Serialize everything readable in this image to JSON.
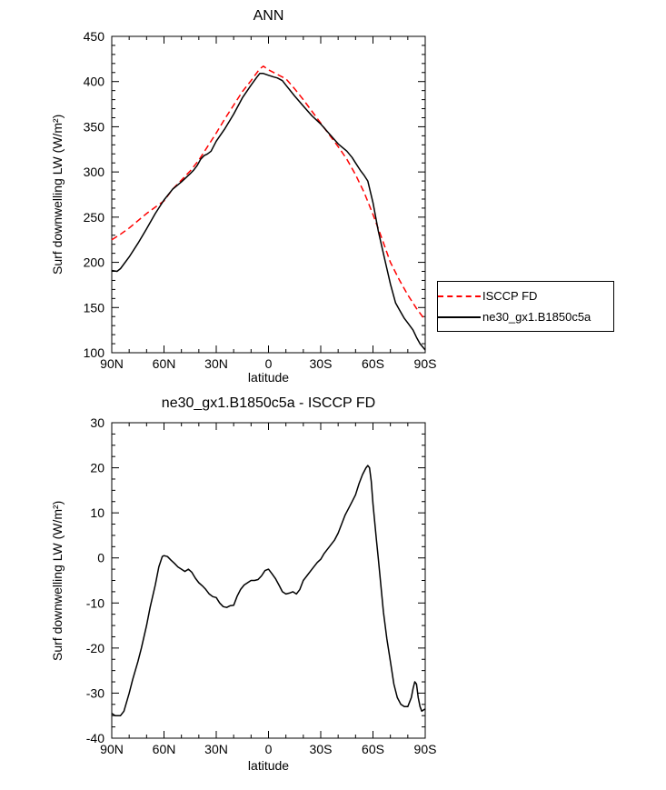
{
  "page": {
    "background": "#ffffff"
  },
  "chart_data": [
    {
      "type": "line",
      "title": "ANN",
      "xlabel": "latitude",
      "ylabel": "Surf downwelling LW (W/m²)",
      "xlim": [
        90,
        -90
      ],
      "ylim": [
        100,
        450
      ],
      "grid": false,
      "legend_position": "outside-right",
      "axis_color": "#000000",
      "xticks": {
        "major": [
          {
            "v": 90,
            "label": "90N"
          },
          {
            "v": 60,
            "label": "60N"
          },
          {
            "v": 30,
            "label": "30N"
          },
          {
            "v": 0,
            "label": "0"
          },
          {
            "v": -30,
            "label": "30S"
          },
          {
            "v": -60,
            "label": "60S"
          },
          {
            "v": -90,
            "label": "90S"
          }
        ],
        "minor_step": 10
      },
      "yticks": {
        "major": [
          {
            "v": 100,
            "label": "100"
          },
          {
            "v": 150,
            "label": "150"
          },
          {
            "v": 200,
            "label": "200"
          },
          {
            "v": 250,
            "label": "250"
          },
          {
            "v": 300,
            "label": "300"
          },
          {
            "v": 350,
            "label": "350"
          },
          {
            "v": 400,
            "label": "400"
          },
          {
            "v": 450,
            "label": "450"
          }
        ],
        "minor_step": 10
      },
      "series": [
        {
          "id": "isccp-fd",
          "name": "ISCCP FD",
          "color": "#ff0000",
          "style": "dashed",
          "dash": "7,4",
          "points": [
            [
              90,
              225
            ],
            [
              85,
              231
            ],
            [
              80,
              238
            ],
            [
              75,
              246
            ],
            [
              70,
              254
            ],
            [
              65,
              261
            ],
            [
              60,
              268
            ],
            [
              55,
              281
            ],
            [
              50,
              291
            ],
            [
              45,
              301
            ],
            [
              40,
              313
            ],
            [
              35,
              328
            ],
            [
              30,
              343
            ],
            [
              25,
              359
            ],
            [
              20,
              374
            ],
            [
              15,
              389
            ],
            [
              10,
              401
            ],
            [
              7,
              409
            ],
            [
              5,
              414
            ],
            [
              3,
              417
            ],
            [
              0,
              413
            ],
            [
              -3,
              410
            ],
            [
              -5,
              408
            ],
            [
              -10,
              403
            ],
            [
              -15,
              392
            ],
            [
              -20,
              380
            ],
            [
              -25,
              367
            ],
            [
              -30,
              354
            ],
            [
              -35,
              341
            ],
            [
              -40,
              328
            ],
            [
              -45,
              314
            ],
            [
              -50,
              297
            ],
            [
              -55,
              277
            ],
            [
              -60,
              253
            ],
            [
              -65,
              227
            ],
            [
              -70,
              200
            ],
            [
              -75,
              181
            ],
            [
              -80,
              164
            ],
            [
              -85,
              149
            ],
            [
              -90,
              136
            ]
          ]
        },
        {
          "id": "ne30",
          "name": "ne30_gx1.B1850c5a",
          "color": "#000000",
          "style": "solid",
          "dash": "",
          "points": [
            [
              90,
              191
            ],
            [
              87,
              190
            ],
            [
              85,
              193
            ],
            [
              80,
              206
            ],
            [
              75,
              221
            ],
            [
              70,
              237
            ],
            [
              65,
              254
            ],
            [
              60,
              269
            ],
            [
              55,
              281
            ],
            [
              50,
              289
            ],
            [
              45,
              298
            ],
            [
              43,
              302
            ],
            [
              41,
              307
            ],
            [
              39,
              314
            ],
            [
              37,
              318
            ],
            [
              35,
              320
            ],
            [
              33,
              323
            ],
            [
              30,
              334
            ],
            [
              25,
              348
            ],
            [
              20,
              364
            ],
            [
              15,
              382
            ],
            [
              10,
              396
            ],
            [
              7,
              404
            ],
            [
              5,
              409
            ],
            [
              3,
              409
            ],
            [
              0,
              407
            ],
            [
              -3,
              405
            ],
            [
              -5,
              404
            ],
            [
              -8,
              401
            ],
            [
              -10,
              396
            ],
            [
              -15,
              384
            ],
            [
              -20,
              373
            ],
            [
              -25,
              362
            ],
            [
              -30,
              353
            ],
            [
              -35,
              342
            ],
            [
              -40,
              331
            ],
            [
              -45,
              323
            ],
            [
              -48,
              316
            ],
            [
              -50,
              310
            ],
            [
              -53,
              301
            ],
            [
              -55,
              296
            ],
            [
              -57,
              290
            ],
            [
              -60,
              266
            ],
            [
              -63,
              235
            ],
            [
              -65,
              218
            ],
            [
              -68,
              193
            ],
            [
              -70,
              176
            ],
            [
              -73,
              155
            ],
            [
              -75,
              148
            ],
            [
              -78,
              138
            ],
            [
              -80,
              133
            ],
            [
              -83,
              125
            ],
            [
              -85,
              117
            ],
            [
              -87,
              110
            ],
            [
              -90,
              103
            ]
          ]
        }
      ]
    },
    {
      "type": "line",
      "title": "ne30_gx1.B1850c5a - ISCCP FD",
      "xlabel": "latitude",
      "ylabel": "Surf downwelling LW (W/m²)",
      "xlim": [
        90,
        -90
      ],
      "ylim": [
        -40,
        30
      ],
      "grid": false,
      "legend_position": "none",
      "axis_color": "#000000",
      "xticks": {
        "major": [
          {
            "v": 90,
            "label": "90N"
          },
          {
            "v": 60,
            "label": "60N"
          },
          {
            "v": 30,
            "label": "30N"
          },
          {
            "v": 0,
            "label": "0"
          },
          {
            "v": -30,
            "label": "30S"
          },
          {
            "v": -60,
            "label": "60S"
          },
          {
            "v": -90,
            "label": "90S"
          }
        ],
        "minor_step": 10
      },
      "yticks": {
        "major": [
          {
            "v": -40,
            "label": "-40"
          },
          {
            "v": -30,
            "label": "-30"
          },
          {
            "v": -20,
            "label": "-20"
          },
          {
            "v": -10,
            "label": "-10"
          },
          {
            "v": 0,
            "label": "0"
          },
          {
            "v": 10,
            "label": "10"
          },
          {
            "v": 20,
            "label": "20"
          },
          {
            "v": 30,
            "label": "30"
          }
        ],
        "minor_step": 2.5
      },
      "series": [
        {
          "id": "diff",
          "name": "ne30_gx1.B1850c5a - ISCCP FD",
          "color": "#000000",
          "style": "solid",
          "dash": "",
          "points": [
            [
              90,
              -34.5
            ],
            [
              88,
              -35
            ],
            [
              85,
              -35
            ],
            [
              83,
              -34
            ],
            [
              80,
              -30
            ],
            [
              78,
              -27
            ],
            [
              75,
              -23
            ],
            [
              73,
              -20
            ],
            [
              70,
              -15
            ],
            [
              68,
              -11
            ],
            [
              65,
              -6
            ],
            [
              63,
              -2
            ],
            [
              61,
              0.3
            ],
            [
              60,
              0.5
            ],
            [
              58,
              0.3
            ],
            [
              56,
              -0.5
            ],
            [
              54,
              -1.2
            ],
            [
              52,
              -2
            ],
            [
              50,
              -2.5
            ],
            [
              48,
              -3
            ],
            [
              46,
              -2.5
            ],
            [
              44,
              -3.2
            ],
            [
              42,
              -4.5
            ],
            [
              40,
              -5.5
            ],
            [
              38,
              -6.2
            ],
            [
              36,
              -7
            ],
            [
              34,
              -8
            ],
            [
              32,
              -8.6
            ],
            [
              30,
              -8.8
            ],
            [
              28,
              -10
            ],
            [
              26,
              -10.8
            ],
            [
              24,
              -11
            ],
            [
              22,
              -10.6
            ],
            [
              20,
              -10.5
            ],
            [
              18,
              -8.5
            ],
            [
              16,
              -7
            ],
            [
              14,
              -6
            ],
            [
              12,
              -5.5
            ],
            [
              10,
              -5
            ],
            [
              8,
              -5
            ],
            [
              6,
              -4.8
            ],
            [
              4,
              -4
            ],
            [
              2,
              -2.8
            ],
            [
              0,
              -2.5
            ],
            [
              -2,
              -3.5
            ],
            [
              -4,
              -4.6
            ],
            [
              -6,
              -6
            ],
            [
              -8,
              -7.5
            ],
            [
              -10,
              -8
            ],
            [
              -12,
              -7.8
            ],
            [
              -14,
              -7.5
            ],
            [
              -16,
              -8
            ],
            [
              -18,
              -7
            ],
            [
              -20,
              -5
            ],
            [
              -22,
              -4
            ],
            [
              -25,
              -2.5
            ],
            [
              -28,
              -1
            ],
            [
              -30,
              -0.3
            ],
            [
              -32,
              1
            ],
            [
              -35,
              2.5
            ],
            [
              -38,
              4
            ],
            [
              -40,
              5.5
            ],
            [
              -42,
              7.5
            ],
            [
              -44,
              9.5
            ],
            [
              -46,
              11
            ],
            [
              -48,
              12.5
            ],
            [
              -50,
              14
            ],
            [
              -52,
              16.5
            ],
            [
              -54,
              18.5
            ],
            [
              -56,
              20
            ],
            [
              -57,
              20.5
            ],
            [
              -58,
              20
            ],
            [
              -59,
              17
            ],
            [
              -60,
              12
            ],
            [
              -61,
              8
            ],
            [
              -62,
              4
            ],
            [
              -63,
              0
            ],
            [
              -64,
              -4
            ],
            [
              -65,
              -8
            ],
            [
              -66,
              -12
            ],
            [
              -68,
              -18
            ],
            [
              -70,
              -23
            ],
            [
              -72,
              -28
            ],
            [
              -74,
              -31
            ],
            [
              -76,
              -32.5
            ],
            [
              -78,
              -33
            ],
            [
              -80,
              -33
            ],
            [
              -82,
              -31
            ],
            [
              -83,
              -29
            ],
            [
              -84,
              -27.5
            ],
            [
              -85,
              -28
            ],
            [
              -86,
              -31
            ],
            [
              -87,
              -33
            ],
            [
              -88,
              -34
            ],
            [
              -90,
              -33.5
            ]
          ]
        }
      ]
    }
  ]
}
